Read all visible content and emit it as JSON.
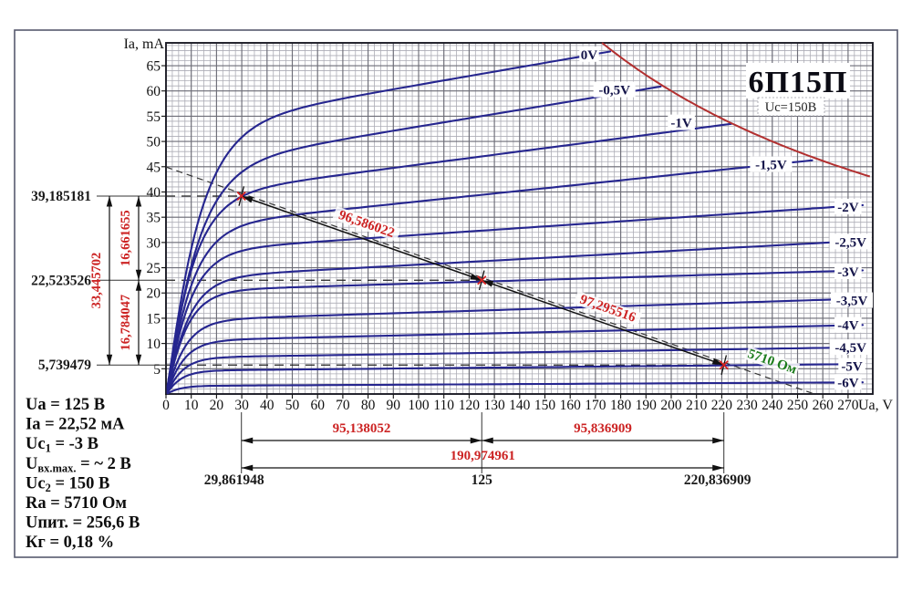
{
  "colors": {
    "curve": "#26268f",
    "pmax": "#b23030",
    "annotation_red": "#cc2323",
    "resistor_green": "#1e7d1e",
    "text": "#111111",
    "grid_minor": "#adadb6",
    "grid_major": "#6e6e78",
    "frame": "#565a6e",
    "dim_black": "#1a1a1a"
  },
  "chart_data": {
    "type": "line",
    "title": "6П15П",
    "subtitle": "Uc=150В",
    "xlabel": "Ua, V",
    "ylabel": "Ia, mA",
    "xlim": [
      0,
      280
    ],
    "ylim": [
      0,
      69.5
    ],
    "grid": {
      "minor_x_step_v": 2.5,
      "minor_y_step_ma": 1,
      "major_x_step_v": 10,
      "major_y_step_ma": 5
    },
    "x_ticks": [
      0,
      10,
      20,
      30,
      40,
      50,
      60,
      70,
      80,
      90,
      100,
      110,
      120,
      130,
      140,
      150,
      160,
      170,
      180,
      190,
      200,
      210,
      220,
      230,
      240,
      250,
      260,
      270
    ],
    "y_ticks": [
      5,
      10,
      15,
      20,
      25,
      30,
      35,
      40,
      45,
      50,
      55,
      60,
      65
    ],
    "anode_curves": [
      {
        "label": "0V",
        "ia40": 56,
        "ia270": 76,
        "knee": 11,
        "clip_pmax": true,
        "label_v": 167.5,
        "label_ia": 67.2
      },
      {
        "label": "-0,5V",
        "ia40": 48,
        "ia270": 67,
        "knee": 10.5,
        "clip_pmax": true,
        "label_v": 177.5,
        "label_ia": 60.2
      },
      {
        "label": "-1V",
        "ia40": 41.5,
        "ia270": 56.5,
        "knee": 9,
        "clip_pmax": true,
        "label_v": 204,
        "label_ia": 53.7
      },
      {
        "label": "-1,5V",
        "ia40": 35,
        "ia270": 47,
        "knee": 8.5,
        "clip_pmax": true,
        "label_v": 239.5,
        "label_ia": 45.4
      },
      {
        "label": "-2V",
        "ia40": 29.5,
        "ia270": 37.2,
        "knee": 8,
        "clip_pmax": false,
        "label_v": 270,
        "label_ia": 37.0
      },
      {
        "label": "-2,5V",
        "ia40": 24,
        "ia270": 30.2,
        "knee": 7.5,
        "clip_pmax": false,
        "label_v": 271,
        "label_ia": 30.1
      },
      {
        "label": "-3V",
        "ia40": 21,
        "ia270": 24.4,
        "knee": 7,
        "clip_pmax": false,
        "label_v": 270,
        "label_ia": 24.2
      },
      {
        "label": "-3,5V",
        "ia40": 15.2,
        "ia270": 18.8,
        "knee": 6.5,
        "clip_pmax": false,
        "label_v": 271.5,
        "label_ia": 18.5
      },
      {
        "label": "-4V",
        "ia40": 11,
        "ia270": 13.6,
        "knee": 6,
        "clip_pmax": false,
        "label_v": 270,
        "label_ia": 13.6
      },
      {
        "label": "-4,5V",
        "ia40": 7.5,
        "ia270": 9.2,
        "knee": 5.5,
        "clip_pmax": false,
        "label_v": 271,
        "label_ia": 9.2
      },
      {
        "label": "-5V",
        "ia40": 4.8,
        "ia270": 5.9,
        "knee": 5,
        "clip_pmax": false,
        "label_v": 271.5,
        "label_ia": 5.5
      },
      {
        "label": "-6V",
        "ia40": 1.7,
        "ia270": 2.3,
        "knee": 4.5,
        "clip_pmax": false,
        "label_v": 270,
        "label_ia": 2.3
      }
    ],
    "pmax_hyperbola": {
      "pa_milliwatt": 12000
    },
    "load_line": {
      "points_v_ma": [
        [
          29.861948,
          39.185181
        ],
        [
          125,
          22.523526
        ],
        [
          220.836909,
          5.739479
        ]
      ],
      "segment_labels": [
        "96,586022",
        "97,295516"
      ]
    },
    "dc_load_line": {
      "x_intercept_v": 256.6,
      "y_intercept_ma": 44.94,
      "resistor_label": "5710 Ом",
      "label_at_v": 238
    },
    "y_point_labels": [
      "39,185181",
      "22,523526",
      "5,739479"
    ],
    "y_dim": {
      "outer": "33,445702",
      "upper": "16,661655",
      "lower": "16,784047"
    },
    "x_point_labels": [
      "29,861948",
      "125",
      "220,836909"
    ],
    "x_dim": {
      "left": "95,138052",
      "right": "95,836909",
      "total": "190,974961"
    }
  },
  "info_block": {
    "lines": [
      [
        {
          "t": "Ua = 125 В"
        }
      ],
      [
        {
          "t": "Ia = 22,52 мА"
        }
      ],
      [
        {
          "t": "Uc"
        },
        {
          "s": "1"
        },
        {
          "t": " = -3 В"
        }
      ],
      [
        {
          "t": "U"
        },
        {
          "s": "вх.max."
        },
        {
          "t": " = ~ 2 В"
        }
      ],
      [
        {
          "t": "Uc"
        },
        {
          "s": "2"
        },
        {
          "t": " = 150 В"
        }
      ],
      [
        {
          "t": "Ra = 5710 Ом"
        }
      ],
      [
        {
          "t": "Uпит. = 256,6 В"
        }
      ],
      [
        {
          "t": "Кг = 0,18 %"
        }
      ]
    ]
  }
}
